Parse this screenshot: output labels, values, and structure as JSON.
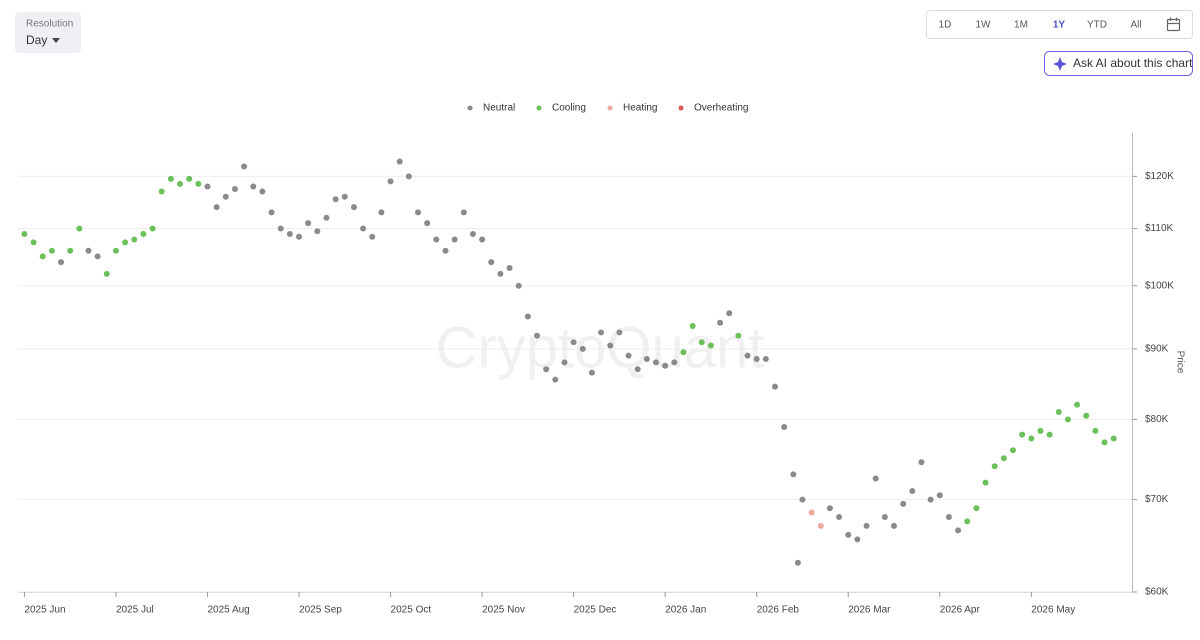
{
  "ui": {
    "resolution_label": "Resolution",
    "resolution_value": "Day",
    "ranges": [
      "1D",
      "1W",
      "1M",
      "1Y",
      "YTD",
      "All"
    ],
    "active_range": "1Y",
    "ask_ai": "Ask AI about this chart"
  },
  "watermark": "CryptoQuant",
  "chart_data": {
    "type": "scatter",
    "y_label": "Price",
    "log_y": true,
    "grid": true,
    "y_axis_side": "right",
    "legend_position": "top",
    "xlim": [
      -0.07,
      12.1
    ],
    "xticks": [
      {
        "value": 0,
        "label": "2025 Jun"
      },
      {
        "value": 1,
        "label": "2025 Jul"
      },
      {
        "value": 2,
        "label": "2025 Aug"
      },
      {
        "value": 3,
        "label": "2025 Sep"
      },
      {
        "value": 4,
        "label": "2025 Oct"
      },
      {
        "value": 5,
        "label": "2025 Nov"
      },
      {
        "value": 6,
        "label": "2025 Dec"
      },
      {
        "value": 7,
        "label": "2026 Jan"
      },
      {
        "value": 8,
        "label": "2026 Feb"
      },
      {
        "value": 9,
        "label": "2026 Mar"
      },
      {
        "value": 10,
        "label": "2026 Apr"
      },
      {
        "value": 11,
        "label": "2026 May"
      }
    ],
    "ylim": [
      60000,
      129000
    ],
    "yticks": [
      {
        "value": 60000,
        "label": "$60K"
      },
      {
        "value": 70000,
        "label": "$70K"
      },
      {
        "value": 80000,
        "label": "$80K"
      },
      {
        "value": 90000,
        "label": "$90K"
      },
      {
        "value": 100000,
        "label": "$100K"
      },
      {
        "value": 110000,
        "label": "$110K"
      },
      {
        "value": 120000,
        "label": "$120K"
      }
    ],
    "series": [
      {
        "name": "Neutral",
        "color": "#8a8a8e",
        "x": [
          0.4,
          0.7,
          0.8,
          2.0,
          2.1,
          2.2,
          2.3,
          2.4,
          2.5,
          2.6,
          2.7,
          2.8,
          2.9,
          3.0,
          3.1,
          3.2,
          3.3,
          3.4,
          3.5,
          3.6,
          3.7,
          3.8,
          3.9,
          4.0,
          4.1,
          4.2,
          4.3,
          4.4,
          4.5,
          4.6,
          4.7,
          4.8,
          4.9,
          5.0,
          5.1,
          5.2,
          5.3,
          5.4,
          5.5,
          5.6,
          5.7,
          5.8,
          5.9,
          6.0,
          6.1,
          6.2,
          6.3,
          6.4,
          6.5,
          6.6,
          6.7,
          6.8,
          6.9,
          7.0,
          7.1,
          7.6,
          7.7,
          7.9,
          8.0,
          8.1,
          8.2,
          8.3,
          8.4,
          8.45,
          8.5,
          8.8,
          8.9,
          9.0,
          9.1,
          9.2,
          9.3,
          9.4,
          9.5,
          9.6,
          9.7,
          9.8,
          9.9,
          10.0,
          10.1,
          10.2
        ],
        "values": [
          104000,
          106000,
          105000,
          118000,
          114000,
          116000,
          117500,
          122000,
          118000,
          117000,
          113000,
          110000,
          109000,
          108500,
          111000,
          109500,
          112000,
          115500,
          116000,
          114000,
          110000,
          108500,
          113000,
          119000,
          123000,
          120000,
          113000,
          111000,
          108000,
          106000,
          108000,
          113000,
          109000,
          108000,
          104000,
          102000,
          103000,
          100000,
          95000,
          92000,
          87000,
          85500,
          88000,
          91000,
          90000,
          86500,
          92500,
          90500,
          92500,
          89000,
          87000,
          88500,
          88000,
          87500,
          88000,
          94000,
          95500,
          89000,
          88500,
          88500,
          84500,
          79000,
          73000,
          63000,
          70000,
          69000,
          68000,
          66000,
          65500,
          67000,
          72500,
          68000,
          67000,
          69500,
          71000,
          74500,
          70000,
          70500,
          68000,
          66500
        ]
      },
      {
        "name": "Cooling",
        "color": "#6cc05a",
        "x": [
          0.0,
          0.1,
          0.2,
          0.3,
          0.5,
          0.6,
          0.9,
          1.0,
          1.1,
          1.2,
          1.3,
          1.4,
          1.5,
          1.6,
          1.7,
          1.8,
          1.9,
          7.2,
          7.3,
          7.4,
          7.5,
          7.8,
          10.3,
          10.4,
          10.5,
          10.6,
          10.7,
          10.8,
          10.9,
          11.0,
          11.1,
          11.2,
          11.3,
          11.4,
          11.5,
          11.6,
          11.7,
          11.8,
          11.9
        ],
        "values": [
          109000,
          107500,
          105000,
          106000,
          106000,
          110000,
          102000,
          106000,
          107500,
          108000,
          109000,
          110000,
          117000,
          119500,
          118500,
          119500,
          118500,
          89500,
          93500,
          91000,
          90500,
          92000,
          67500,
          69000,
          72000,
          74000,
          75000,
          76000,
          78000,
          77500,
          78500,
          78000,
          81000,
          80000,
          82000,
          80500,
          78500,
          77000,
          77500
        ]
      },
      {
        "name": "Heating",
        "color": "#f0a8a0",
        "x": [
          8.6,
          8.7
        ],
        "values": [
          68500,
          67000
        ]
      },
      {
        "name": "Overheating",
        "color": "#e05555",
        "x": [],
        "values": []
      }
    ]
  }
}
